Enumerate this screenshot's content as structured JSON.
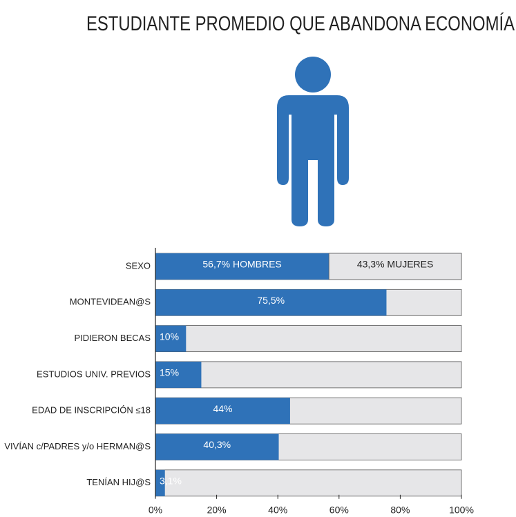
{
  "chart_data": {
    "type": "hbar",
    "title": "ESTUDIANTE PROMEDIO QUE ABANDONA ECONOMÍA",
    "categories": [
      "SEXO",
      "MONTEVIDEAN@S",
      "PIDIERON BECAS",
      "ESTUDIOS UNIV. PREVIOS",
      "EDAD DE INSCRIPCIÓN ≤18",
      "VIVÍAN c/PADRES y/o HERMAN@S",
      "TENÍAN HIJ@S"
    ],
    "values": [
      56.7,
      75.5,
      10,
      15,
      44,
      40.3,
      3.1
    ],
    "value_labels": [
      "56,7% HOMBRES",
      "75,5%",
      "10%",
      "15%",
      "44%",
      "40,3%",
      "3,1%"
    ],
    "sexo_mujeres": {
      "value": 43.3,
      "label": "43,3% MUJERES"
    },
    "color": "#2f72b8",
    "xlim": [
      0,
      100
    ],
    "xticks": [
      {
        "value": 0,
        "label": "0%"
      },
      {
        "value": 20,
        "label": "20%"
      },
      {
        "value": 40,
        "label": "40%"
      },
      {
        "value": 60,
        "label": "60%"
      },
      {
        "value": 80,
        "label": "80%"
      },
      {
        "value": 100,
        "label": "100%"
      }
    ]
  }
}
